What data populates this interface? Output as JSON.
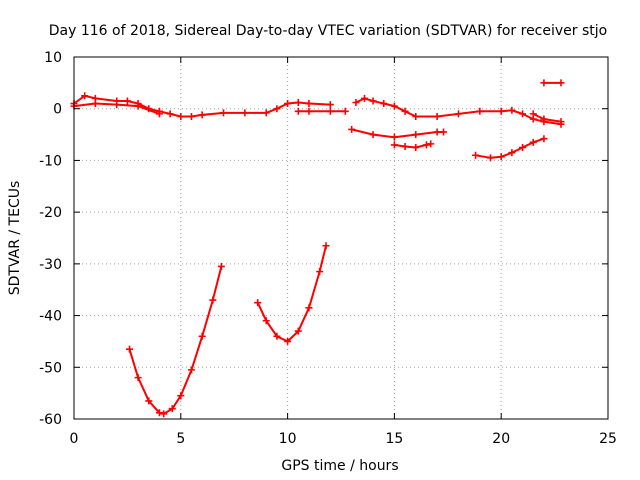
{
  "chart_data": {
    "type": "scatter",
    "title": "Day 116 of 2018, Sidereal Day-to-day VTEC variation (SDTVAR) for receiver stjo",
    "xlabel": "GPS time / hours",
    "ylabel": "SDTVAR / TECUs",
    "xlim": [
      0,
      25
    ],
    "ylim": [
      -60,
      10
    ],
    "xticks": [
      0,
      5,
      10,
      15,
      20,
      25
    ],
    "yticks": [
      10,
      0,
      -10,
      -20,
      -30,
      -40,
      -50,
      -60
    ],
    "grid": true,
    "marker_color": "#ff0000",
    "series": [
      {
        "points": [
          [
            0,
            1
          ],
          [
            0.5,
            2.5
          ],
          [
            1,
            2
          ],
          [
            2,
            1.5
          ],
          [
            2.5,
            1.5
          ],
          [
            3,
            1
          ],
          [
            3.5,
            0
          ],
          [
            4,
            -0.5
          ],
          [
            4.5,
            -1
          ],
          [
            5,
            -1.5
          ],
          [
            5.5,
            -1.5
          ],
          [
            6,
            -1.2
          ],
          [
            7,
            -0.8
          ],
          [
            8,
            -0.8
          ],
          [
            9,
            -0.8
          ],
          [
            9.5,
            0
          ],
          [
            10,
            1
          ],
          [
            10.5,
            1.2
          ],
          [
            11,
            1
          ],
          [
            12,
            0.8
          ]
        ]
      },
      {
        "points": [
          [
            0,
            0.5
          ],
          [
            1,
            1
          ],
          [
            2,
            0.8
          ],
          [
            3,
            0.5
          ],
          [
            4,
            -1
          ]
        ]
      },
      {
        "points": [
          [
            10.5,
            -0.5
          ],
          [
            11,
            -0.5
          ],
          [
            12,
            -0.5
          ],
          [
            12.7,
            -0.5
          ]
        ]
      },
      {
        "points": [
          [
            13.2,
            1.2
          ],
          [
            13.6,
            2
          ],
          [
            14,
            1.5
          ],
          [
            14.5,
            1
          ],
          [
            15,
            0.5
          ],
          [
            15.5,
            -0.5
          ],
          [
            16,
            -1.5
          ],
          [
            17,
            -1.5
          ],
          [
            18,
            -1
          ],
          [
            19,
            -0.5
          ],
          [
            20,
            -0.5
          ],
          [
            20.5,
            -0.3
          ],
          [
            21,
            -1
          ],
          [
            21.5,
            -2
          ],
          [
            22,
            -2.5
          ],
          [
            22.8,
            -3
          ]
        ]
      },
      {
        "points": [
          [
            21.5,
            -1
          ],
          [
            22,
            -2
          ],
          [
            22.8,
            -2.5
          ]
        ]
      },
      {
        "points": [
          [
            13,
            -4
          ],
          [
            14,
            -5
          ],
          [
            15,
            -5.5
          ],
          [
            16,
            -5
          ],
          [
            17,
            -4.5
          ],
          [
            17.3,
            -4.5
          ]
        ]
      },
      {
        "points": [
          [
            15,
            -7
          ],
          [
            15.5,
            -7.3
          ],
          [
            16,
            -7.5
          ],
          [
            16.5,
            -7
          ],
          [
            16.7,
            -6.8
          ]
        ]
      },
      {
        "points": [
          [
            18.8,
            -9
          ],
          [
            19.5,
            -9.5
          ],
          [
            20,
            -9.3
          ],
          [
            20.5,
            -8.5
          ],
          [
            21,
            -7.5
          ],
          [
            21.5,
            -6.5
          ],
          [
            22,
            -5.8
          ]
        ]
      },
      {
        "points": [
          [
            22,
            5
          ],
          [
            22.8,
            5
          ]
        ]
      },
      {
        "points": [
          [
            2.6,
            -46.5
          ],
          [
            3,
            -52
          ],
          [
            3.5,
            -56.5
          ],
          [
            4,
            -58.8
          ],
          [
            4.2,
            -59
          ],
          [
            4.6,
            -58
          ],
          [
            5,
            -55.5
          ],
          [
            5.5,
            -50.5
          ],
          [
            6,
            -44
          ],
          [
            6.5,
            -37
          ],
          [
            6.9,
            -30.5
          ]
        ]
      },
      {
        "points": [
          [
            8.6,
            -37.5
          ],
          [
            9,
            -41
          ],
          [
            9.5,
            -44
          ],
          [
            10,
            -45
          ],
          [
            10.5,
            -43
          ],
          [
            11,
            -38.5
          ],
          [
            11.5,
            -31.5
          ],
          [
            11.8,
            -26.5
          ]
        ]
      }
    ]
  }
}
